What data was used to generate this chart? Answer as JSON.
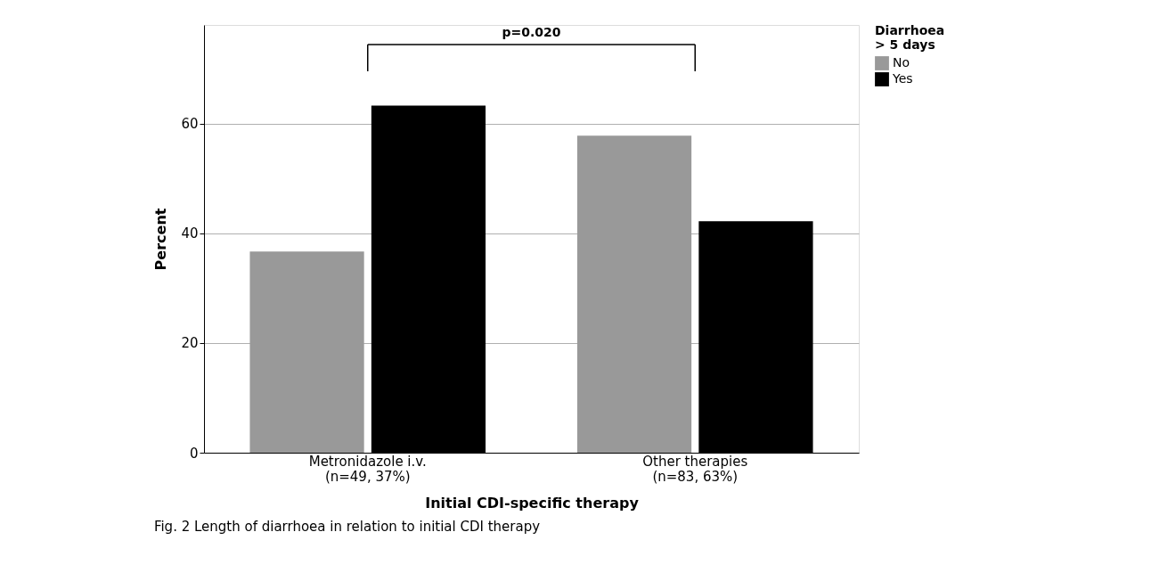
{
  "chart_data": {
    "type": "bar",
    "categories": [
      "Metronidazole i.v.\n(n=49, 37%)",
      "Other therapies\n(n=83, 63%)"
    ],
    "series": [
      {
        "name": "No",
        "color": "#999999",
        "values": [
          36.7,
          57.8
        ]
      },
      {
        "name": "Yes",
        "color": "#000000",
        "values": [
          63.3,
          42.2
        ]
      }
    ],
    "xlabel": "Initial CDI-specific therapy",
    "ylabel": "Percent",
    "legend_title": "Diarrhoea\n> 5 days",
    "ylim": [
      0,
      78
    ],
    "yticks": [
      0,
      20,
      40,
      60
    ],
    "grid": "y",
    "legend": "top right",
    "annotations": [
      "p=0.020",
      "Fig. 2 Length of diarrhoea in relation to initial CDI therapy"
    ]
  }
}
